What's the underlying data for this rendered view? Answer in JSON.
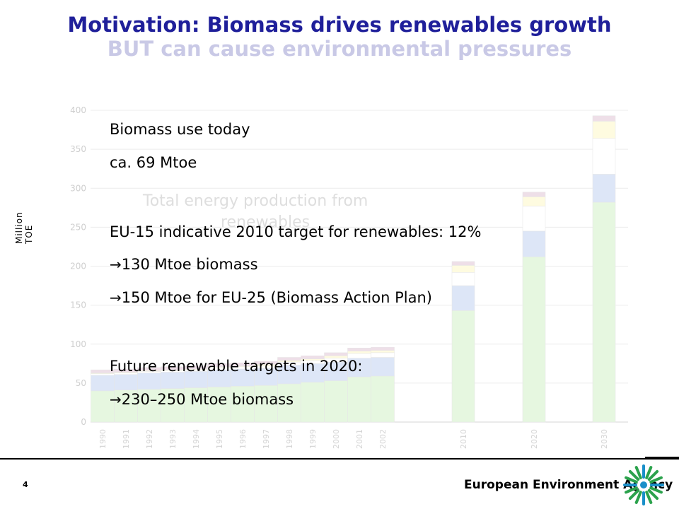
{
  "title": {
    "line1": "Motivation: Biomass drives renewables growth",
    "line2": "BUT can cause environmental pressures"
  },
  "chart_data": {
    "type": "bar",
    "ylabel": "Million TOE",
    "ylim": [
      0,
      400
    ],
    "yticks": [
      "0",
      "50",
      "100",
      "150",
      "200",
      "250",
      "300",
      "350",
      "400"
    ],
    "categories": [
      "1990",
      "1991",
      "1992",
      "1993",
      "1994",
      "1995",
      "1996",
      "1997",
      "1998",
      "1999",
      "2000",
      "2001",
      "2002",
      "2010",
      "2020",
      "2030"
    ],
    "series": [
      {
        "color": "#e6f7e0",
        "values": [
          40,
          41,
          42,
          43,
          44,
          45,
          46,
          47,
          49,
          51,
          53,
          58,
          59,
          143,
          212,
          282
        ]
      },
      {
        "color": "#dde6f7",
        "values": [
          20,
          20,
          21,
          21,
          21,
          22,
          22,
          22,
          24,
          24,
          24,
          24,
          24,
          32,
          33,
          36
        ]
      },
      {
        "color": "#ffffff",
        "values": [
          2,
          2,
          2,
          2,
          2,
          3,
          3,
          3,
          4,
          4,
          5,
          6,
          6,
          17,
          32,
          46
        ]
      },
      {
        "color": "#fefbe0",
        "values": [
          1,
          1,
          1,
          1,
          1,
          1,
          1,
          2,
          2,
          2,
          3,
          3,
          3,
          9,
          12,
          22
        ]
      },
      {
        "color": "#eedfe8",
        "values": [
          4,
          4,
          4,
          4,
          4,
          4,
          4,
          4,
          4,
          4,
          4,
          4,
          4,
          5,
          6,
          7
        ]
      }
    ]
  },
  "overlay": {
    "faded_line1": "Total energy production from",
    "faded_line2": "renewables"
  },
  "text": {
    "l1": "Biomass use today",
    "l2": "ca. 69 Mtoe",
    "l3": "EU-15 indicative 2010 target for renewables: 12%",
    "l4": "130 Mtoe biomass",
    "l5": "150 Mtoe for EU-25 (Biomass Action Plan)",
    "l6": "Future renewable targets in 2020:",
    "l7": "230–250 Mtoe biomass",
    "arrow": "→"
  },
  "footer": {
    "page": "4",
    "agency": "European Environment Agency"
  }
}
